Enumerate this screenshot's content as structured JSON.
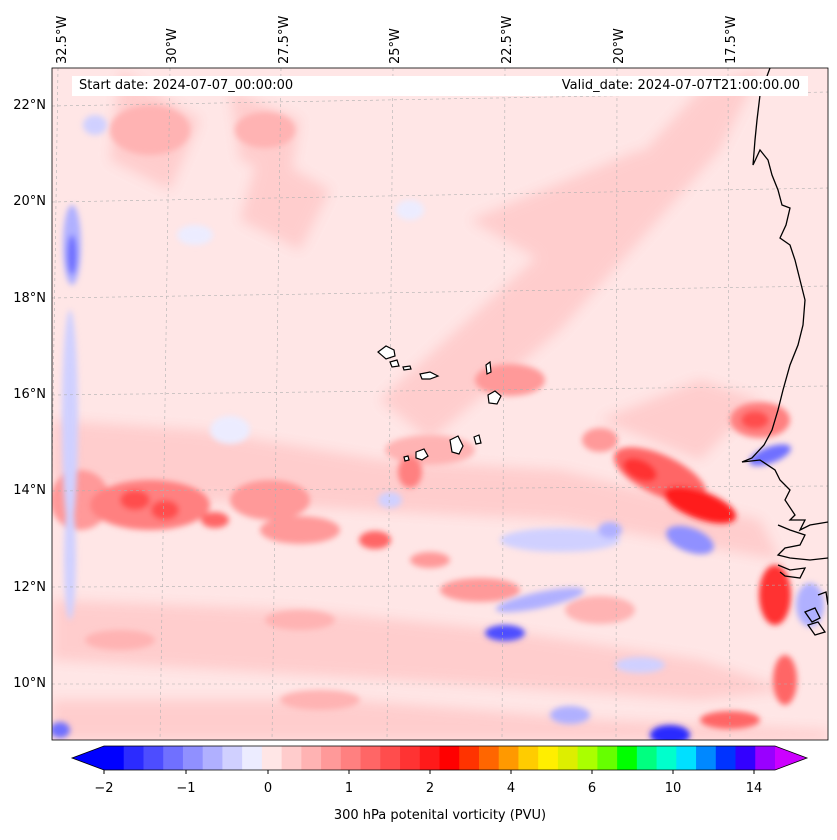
{
  "map": {
    "start_date": "Start date: 2024-07-07_00:00:00",
    "valid_date": "Valid_date: 2024-07-07T21:00:00.00",
    "longitude_labels": [
      "32.5°W",
      "30°W",
      "27.5°W",
      "25°W",
      "22.5°W",
      "20°W",
      "17.5°W"
    ],
    "latitude_labels": [
      "22°N",
      "20°N",
      "18°N",
      "16°N",
      "14°N",
      "12°N",
      "10°N"
    ],
    "field": "300 hPa potential vorticity",
    "colors": {
      "coast": "#000000",
      "grid": "#b0b0b0",
      "background_field": "#ffe6e6"
    }
  },
  "colorbar": {
    "label": "300 hPa potenital vorticity (PVU)",
    "tick_labels": [
      "−2",
      "−1",
      "0",
      "1",
      "2",
      "4",
      "6",
      "10",
      "14"
    ],
    "levels": [
      -2,
      -1.75,
      -1.5,
      -1.25,
      -1,
      -0.75,
      -0.5,
      -0.25,
      0,
      0.25,
      0.5,
      0.75,
      1,
      1.25,
      1.5,
      1.75,
      2,
      2.5,
      3,
      3.5,
      4,
      4.5,
      5,
      5.5,
      6,
      7,
      8,
      9,
      10,
      11,
      12,
      13,
      14,
      15
    ],
    "colors": [
      "#0000ff",
      "#2b2bff",
      "#4d4dff",
      "#7070ff",
      "#9090ff",
      "#b0b0ff",
      "#d0d0ff",
      "#ececff",
      "#ffe6e6",
      "#ffcccc",
      "#ffb3b3",
      "#ff9999",
      "#ff8080",
      "#ff6666",
      "#ff4d4d",
      "#ff3333",
      "#ff1a1a",
      "#ff0000",
      "#ff3300",
      "#ff6600",
      "#ff9900",
      "#ffcc00",
      "#ffee00",
      "#ddee00",
      "#aaff00",
      "#66ff00",
      "#00ff00",
      "#00ff80",
      "#00ffcc",
      "#00e0ff",
      "#0088ff",
      "#0033ff",
      "#3300ff",
      "#9900ff"
    ],
    "extend_low_color": "#0000ff",
    "extend_high_color": "#cc00ff"
  }
}
